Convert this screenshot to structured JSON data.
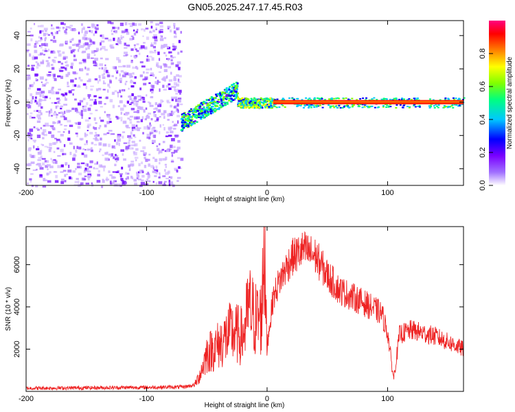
{
  "title": "GN05.2025.247.17.45.R03",
  "chart_data": [
    {
      "type": "heatmap",
      "description": "spectrogram",
      "xlabel": "Height of straight line (km)",
      "ylabel": "Frequency (Hz)",
      "xlim": [
        -200,
        163
      ],
      "ylim": [
        -50,
        49
      ],
      "xticks": [
        -200,
        -100,
        0,
        100
      ],
      "xtick_labels": [
        "-200",
        "-100",
        "0",
        "100"
      ],
      "yticks": [
        -40,
        -20,
        0,
        20,
        40
      ],
      "ytick_labels": [
        "-40",
        "-20",
        "0",
        "20",
        "40"
      ],
      "colorbar": {
        "label": "Normalized spectral amplitude",
        "range": [
          0,
          1
        ],
        "ticks": [
          0.0,
          0.2,
          0.4,
          0.6,
          0.8
        ],
        "tick_labels": [
          "0.0",
          "0.2",
          "0.4",
          "0.6",
          "0.8"
        ],
        "colors": [
          "#ffffff",
          "#7a00ff",
          "#0000ff",
          "#00c8ff",
          "#00ff80",
          "#80ff00",
          "#ffff00",
          "#ff8000",
          "#ff0000",
          "#ff0080"
        ]
      },
      "regions": [
        {
          "x": [
            -200,
            -72
          ],
          "freq": [
            -50,
            49
          ],
          "amplitude": "low scattered noise (0.05-0.2)"
        },
        {
          "x": [
            -72,
            -25
          ],
          "freq_center_from": -12,
          "freq_center_to": 8,
          "amplitude": "0.2-0.6"
        },
        {
          "x": [
            -25,
            5
          ],
          "freq_center": 0,
          "amplitude": "0.2-0.7"
        },
        {
          "x": [
            5,
            163
          ],
          "freq_center": 0,
          "amplitude": "0.8-1.0"
        }
      ]
    },
    {
      "type": "line",
      "xlabel": "Height of straight line (km)",
      "ylabel": "SNR (10 * v/v)",
      "xlim": [
        -200,
        163
      ],
      "ylim": [
        0,
        7800
      ],
      "xticks": [
        -200,
        -100,
        0,
        100
      ],
      "xtick_labels": [
        "-200",
        "-100",
        "0",
        "100"
      ],
      "yticks": [
        2000,
        4000,
        6000
      ],
      "ytick_labels": [
        "2000",
        "4000",
        "6000"
      ],
      "color": "#ee2222",
      "x": [
        -200,
        -150,
        -100,
        -70,
        -60,
        -55,
        -50,
        -40,
        -30,
        -20,
        -15,
        -10,
        -5,
        -3,
        0,
        5,
        10,
        20,
        30,
        40,
        50,
        60,
        80,
        95,
        100,
        105,
        110,
        120,
        140,
        163
      ],
      "y": [
        150,
        170,
        190,
        210,
        300,
        900,
        1800,
        2200,
        2800,
        2600,
        4000,
        3400,
        3500,
        5500,
        2200,
        4400,
        5200,
        6300,
        6700,
        6400,
        5500,
        4800,
        4200,
        3700,
        2800,
        600,
        2700,
        2900,
        2600,
        2000
      ]
    }
  ]
}
